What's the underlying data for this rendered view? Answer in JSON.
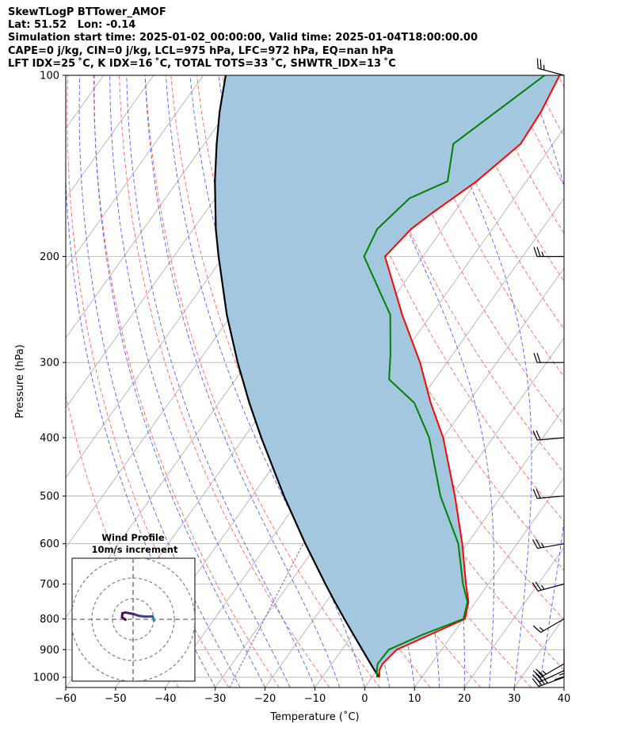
{
  "header": {
    "line1": "SkewTLogP BTTower_AMOF",
    "line2": "Lat: 51.52   Lon: -0.14",
    "line3": "Simulation start time: 2025-01-02_00:00:00, Valid time: 2025-01-04T18:00:00.00",
    "line4": "CAPE=0 j/kg, CIN=0 j/kg, LCL=975 hPa, LFC=972 hPa, EQ=nan hPa",
    "line5": "LFT IDX=25 ˚C, K IDX=16 ˚C, TOTAL TOTS=33 ˚C, SHWTR_IDX=13 ˚C"
  },
  "chart_data": {
    "type": "line",
    "xlabel": "Temperature (˚C)",
    "ylabel": "Pressure (hPa)",
    "xlim": [
      -60,
      40
    ],
    "ylim": [
      1040,
      100
    ],
    "log_y": true,
    "grid": true,
    "skew": true,
    "x_ticks": [
      -60,
      -50,
      -40,
      -30,
      -20,
      -10,
      0,
      10,
      20,
      30,
      40
    ],
    "y_ticks": [
      1000,
      900,
      800,
      700,
      600,
      500,
      400,
      300,
      200,
      100
    ],
    "colors": {
      "temperature": "#ff0000",
      "dewpoint": "#008000",
      "parcel": "#000000",
      "shade": "#a3c7df",
      "dry_adiabats": "#ff6666",
      "moist_adiabats": "#5060ff",
      "mixing_ratio": "#9c4cc6",
      "isotherms": "#aaaaaa"
    },
    "temperature": [
      {
        "p": 1000,
        "t": 1.5
      },
      {
        "p": 975,
        "t": 0.5
      },
      {
        "p": 950,
        "t": 0.2
      },
      {
        "p": 900,
        "t": 1.0
      },
      {
        "p": 850,
        "t": 5.5
      },
      {
        "p": 800,
        "t": 10.3
      },
      {
        "p": 750,
        "t": 8.6
      },
      {
        "p": 700,
        "t": 5.5
      },
      {
        "p": 600,
        "t": -1.0
      },
      {
        "p": 500,
        "t": -9.3
      },
      {
        "p": 400,
        "t": -20.0
      },
      {
        "p": 350,
        "t": -27.5
      },
      {
        "p": 300,
        "t": -35.4
      },
      {
        "p": 250,
        "t": -45.8
      },
      {
        "p": 200,
        "t": -57.6
      },
      {
        "p": 180,
        "t": -56.3
      },
      {
        "p": 170,
        "t": -54.5
      },
      {
        "p": 150,
        "t": -50.0
      },
      {
        "p": 130,
        "t": -46.5
      },
      {
        "p": 115,
        "t": -47.0
      },
      {
        "p": 100,
        "t": -48.5
      }
    ],
    "dewpoint": [
      {
        "p": 1000,
        "t": 1.0
      },
      {
        "p": 975,
        "t": 0.0
      },
      {
        "p": 950,
        "t": -0.8
      },
      {
        "p": 900,
        "t": -0.6
      },
      {
        "p": 850,
        "t": 4.0
      },
      {
        "p": 800,
        "t": 10.0
      },
      {
        "p": 750,
        "t": 8.4
      },
      {
        "p": 700,
        "t": 4.9
      },
      {
        "p": 600,
        "t": -1.8
      },
      {
        "p": 500,
        "t": -12.2
      },
      {
        "p": 400,
        "t": -22.8
      },
      {
        "p": 350,
        "t": -30.8
      },
      {
        "p": 320,
        "t": -39.2
      },
      {
        "p": 290,
        "t": -42.6
      },
      {
        "p": 250,
        "t": -48.2
      },
      {
        "p": 200,
        "t": -61.8
      },
      {
        "p": 180,
        "t": -63.1
      },
      {
        "p": 160,
        "t": -61.0
      },
      {
        "p": 150,
        "t": -55.8
      },
      {
        "p": 130,
        "t": -60.0
      },
      {
        "p": 100,
        "t": -51.5
      }
    ],
    "parcel": [
      {
        "p": 1000,
        "t": 1.5
      },
      {
        "p": 975,
        "t": -0.4
      },
      {
        "p": 950,
        "t": -2.2
      },
      {
        "p": 900,
        "t": -5.9
      },
      {
        "p": 850,
        "t": -9.8
      },
      {
        "p": 800,
        "t": -13.9
      },
      {
        "p": 750,
        "t": -18.2
      },
      {
        "p": 700,
        "t": -22.7
      },
      {
        "p": 600,
        "t": -32.5
      },
      {
        "p": 500,
        "t": -43.6
      },
      {
        "p": 400,
        "t": -56.5
      },
      {
        "p": 350,
        "t": -63.9
      },
      {
        "p": 300,
        "t": -72.0
      },
      {
        "p": 250,
        "t": -81.0
      },
      {
        "p": 200,
        "t": -91.0
      },
      {
        "p": 180,
        "t": -95.5
      },
      {
        "p": 150,
        "t": -102.5
      },
      {
        "p": 130,
        "t": -107.5
      },
      {
        "p": 115,
        "t": -111.5
      },
      {
        "p": 100,
        "t": -115.5
      }
    ],
    "wind_barbs": [
      {
        "p": 1000,
        "speed_kt": 35,
        "dir_deg": 250
      },
      {
        "p": 975,
        "speed_kt": 30,
        "dir_deg": 245
      },
      {
        "p": 950,
        "speed_kt": 25,
        "dir_deg": 240
      },
      {
        "p": 900,
        "speed_kt": 15,
        "dir_deg": 180
      },
      {
        "p": 800,
        "speed_kt": 15,
        "dir_deg": 240
      },
      {
        "p": 700,
        "speed_kt": 25,
        "dir_deg": 255
      },
      {
        "p": 600,
        "speed_kt": 25,
        "dir_deg": 260
      },
      {
        "p": 500,
        "speed_kt": 20,
        "dir_deg": 265
      },
      {
        "p": 400,
        "speed_kt": 20,
        "dir_deg": 265
      },
      {
        "p": 300,
        "speed_kt": 20,
        "dir_deg": 270
      },
      {
        "p": 200,
        "speed_kt": 25,
        "dir_deg": 270
      },
      {
        "p": 100,
        "speed_kt": 25,
        "dir_deg": 285
      }
    ],
    "inset": {
      "title_line1": "Wind Profile",
      "title_line2": "10m/s increment",
      "hodograph": [
        {
          "u": 10.2,
          "v": -0.7,
          "color": "#2a8f8c"
        },
        {
          "u": 9.5,
          "v": 1.4,
          "color": "#3b528b"
        },
        {
          "u": 6.0,
          "v": 1.3,
          "color": "#433e85"
        },
        {
          "u": 2.8,
          "v": 1.7,
          "color": "#46307e"
        },
        {
          "u": 0.0,
          "v": 2.6,
          "color": "#481b6d"
        },
        {
          "u": -3.7,
          "v": 3.3,
          "color": "#48146a"
        },
        {
          "u": -5.2,
          "v": 2.9,
          "color": "#460b5e"
        },
        {
          "u": -5.4,
          "v": 1.0,
          "color": "#450559"
        },
        {
          "u": -3.7,
          "v": -0.2,
          "color": "#440154"
        }
      ]
    }
  }
}
